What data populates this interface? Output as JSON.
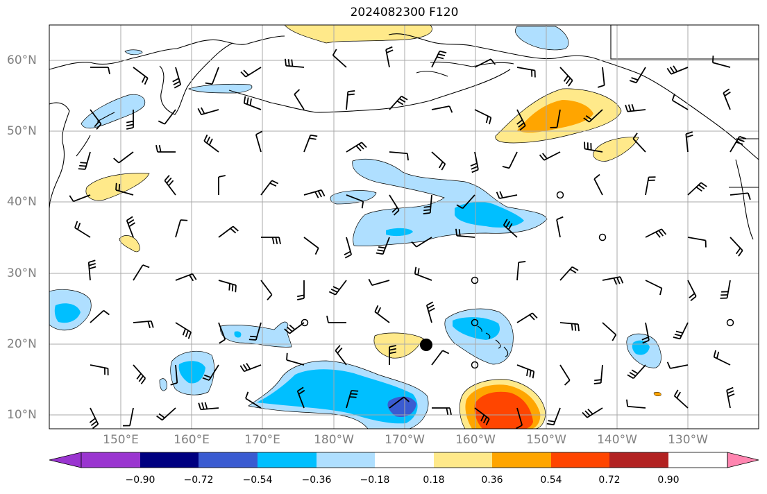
{
  "title": "2024082300 F120",
  "latitude_labels": [
    "60°N",
    "50°N",
    "40°N",
    "30°N",
    "20°N",
    "10°N"
  ],
  "longitude_labels": [
    "150°E",
    "160°E",
    "170°E",
    "180°W",
    "170°W",
    "160°W",
    "150°W",
    "140°W",
    "130°W"
  ],
  "colorbar": {
    "colors": [
      "#9a35d0",
      "#000080",
      "#3a5bd1",
      "#00bfff",
      "#afdfff",
      "#ffffff",
      "#ffe98a",
      "#ffa500",
      "#ff4500",
      "#b22222",
      "#ff85b0"
    ],
    "tick_labels": [
      "−0.90",
      "−0.72",
      "−0.54",
      "−0.36",
      "−0.18",
      "0.18",
      "0.36",
      "0.54",
      "0.72",
      "0.90"
    ]
  },
  "colors": {
    "grid": "#a9a9a9",
    "axis_label": "#808080",
    "coastline": "#000000",
    "marker": "#000000"
  },
  "map": {
    "lon_range": [
      "140°E",
      "115°W"
    ],
    "lat_range": [
      "8°N",
      "65°N"
    ],
    "features": [
      "coastlines",
      "wind-barbs",
      "shaded-anomaly-contours",
      "storm-center-marker"
    ]
  }
}
